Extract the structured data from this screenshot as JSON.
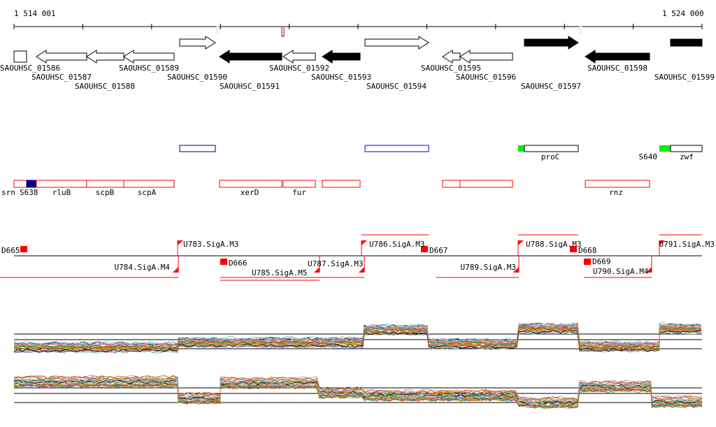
{
  "ruler": {
    "start_label": "1 514 001",
    "end_label": "1 524 000"
  },
  "genes": [
    {
      "name": "SAOUHSC_01586",
      "strand": "none",
      "filled": false
    },
    {
      "name": "SAOUHSC_01587",
      "strand": "-",
      "filled": false
    },
    {
      "name": "SAOUHSC_01588",
      "strand": "-",
      "filled": false
    },
    {
      "name": "SAOUHSC_01589",
      "strand": "-",
      "filled": false
    },
    {
      "name": "SAOUHSC_01590",
      "strand": "+",
      "filled": false
    },
    {
      "name": "SAOUHSC_01591",
      "strand": "-",
      "filled": true
    },
    {
      "name": "SAOUHSC_01592",
      "strand": "-",
      "filled": false
    },
    {
      "name": "SAOUHSC_01593",
      "strand": "-",
      "filled": true
    },
    {
      "name": "SAOUHSC_01594",
      "strand": "+",
      "filled": false
    },
    {
      "name": "SAOUHSC_01595",
      "strand": "-",
      "filled": false
    },
    {
      "name": "SAOUHSC_01596",
      "strand": "-",
      "filled": false
    },
    {
      "name": "SAOUHSC_01597",
      "strand": "+",
      "filled": true
    },
    {
      "name": "SAOUHSC_01598",
      "strand": "-",
      "filled": true
    },
    {
      "name": "SAOUHSC_01599",
      "strand": "+",
      "filled": true
    }
  ],
  "plus_features": [
    {
      "label": ""
    },
    {
      "label": ""
    },
    {
      "label": "proC"
    },
    {
      "label": "S640"
    },
    {
      "label": "zwf"
    }
  ],
  "minus_features": [
    {
      "label": "srn"
    },
    {
      "label": "S638"
    },
    {
      "label": "rluB"
    },
    {
      "label": "scpB"
    },
    {
      "label": "scpA"
    },
    {
      "label": "xerD"
    },
    {
      "label": "fur"
    },
    {
      "label": ""
    },
    {
      "label": ""
    },
    {
      "label": ""
    },
    {
      "label": "rnz"
    }
  ],
  "regulatory": [
    "D665",
    "U783.SigA.M3",
    "U784.SigA.M4",
    "D666",
    "U785.SigA.M5",
    "U787.SigA.M3",
    "U786.SigA.M3",
    "D667",
    "U789.SigA.M3",
    "U788.SigA.M3",
    "D668",
    "D669",
    "U790.SigA.M4",
    "U791.SigA.M3"
  ],
  "colors": {
    "feature": "#ff0000",
    "plus_outline": "#0000cc",
    "green": "#00ee00",
    "navy": "#000080"
  }
}
